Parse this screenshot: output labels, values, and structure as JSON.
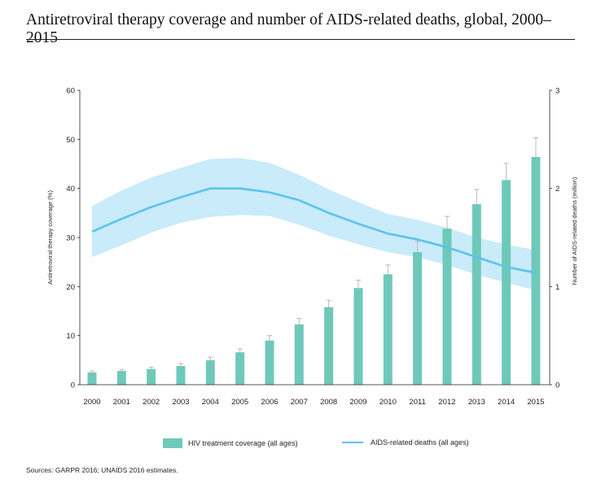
{
  "header": {
    "title": "Antiretroviral therapy coverage and number of AIDS-related deaths, global, 2000–2015"
  },
  "source_note": "Sources: GARPR 2016; UNAIDS 2016 estimates.",
  "chart_data": {
    "type": "bar",
    "title": "Antiretroviral therapy coverage and number of AIDS-related deaths, global, 2000–2015",
    "categories": [
      "2000",
      "2001",
      "2002",
      "2003",
      "2004",
      "2005",
      "2006",
      "2007",
      "2008",
      "2009",
      "2010",
      "2011",
      "2012",
      "2013",
      "2014",
      "2015"
    ],
    "left_axis": {
      "label": "Antiretroviral therapy coverage (%)",
      "ylim": [
        0,
        60
      ],
      "ticks": [
        "0",
        "10",
        "20",
        "30",
        "40",
        "50",
        "60"
      ]
    },
    "right_axis": {
      "label": "Number of AIDS-related deaths (million)",
      "ylim": [
        0,
        3
      ],
      "ticks": [
        "0",
        "1",
        "2",
        "3"
      ]
    },
    "grid": false,
    "legend_position": "bottom",
    "series": [
      {
        "name": "HIV treatment coverage (all ages)",
        "type": "bar",
        "axis": "left",
        "color": "#6ec9b9",
        "values": [
          2.5,
          2.8,
          3.2,
          3.8,
          5.0,
          6.6,
          9.0,
          12.3,
          15.8,
          19.7,
          22.5,
          27.0,
          31.8,
          36.8,
          41.7,
          46.4
        ],
        "error_upper": [
          2.8,
          3.1,
          3.6,
          4.3,
          5.6,
          7.3,
          10.0,
          13.5,
          17.2,
          21.3,
          24.4,
          29.2,
          34.3,
          39.8,
          45.1,
          50.3
        ]
      },
      {
        "name": "AIDS-related deaths (all ages)",
        "type": "line",
        "axis": "right",
        "color": "#5bc4ea",
        "band_color": "#c9ebfa",
        "values": [
          1.56,
          1.69,
          1.81,
          1.91,
          2.0,
          2.0,
          1.96,
          1.88,
          1.75,
          1.64,
          1.54,
          1.48,
          1.4,
          1.3,
          1.2,
          1.14
        ],
        "lower": [
          1.3,
          1.42,
          1.55,
          1.65,
          1.71,
          1.73,
          1.72,
          1.63,
          1.52,
          1.43,
          1.35,
          1.3,
          1.22,
          1.12,
          1.04,
          0.96
        ],
        "upper": [
          1.82,
          1.98,
          2.11,
          2.21,
          2.3,
          2.31,
          2.26,
          2.14,
          1.99,
          1.86,
          1.74,
          1.68,
          1.6,
          1.5,
          1.43,
          1.37
        ]
      }
    ]
  }
}
